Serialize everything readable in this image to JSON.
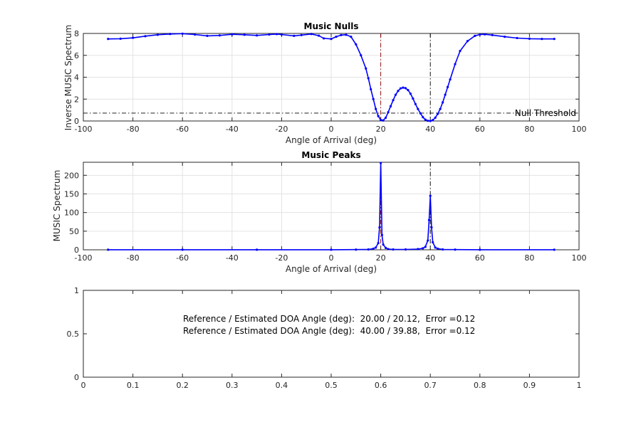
{
  "chart_data": [
    {
      "type": "line",
      "title": "Music Nulls",
      "xlabel": "Angle of Arrival (deg)",
      "ylabel": "Inverse MUSIC Spectrum",
      "xlim": [
        -100,
        100
      ],
      "ylim": [
        0,
        8
      ],
      "xticks": [
        -100,
        -80,
        -60,
        -40,
        -20,
        0,
        20,
        40,
        60,
        80,
        100
      ],
      "yticks": [
        0,
        2,
        4,
        6,
        8
      ],
      "grid": true,
      "series": [
        {
          "color": "#0000ff",
          "marker": "dot",
          "x": [
            -90,
            -85,
            -80,
            -75,
            -70,
            -65,
            -60,
            -55,
            -50,
            -45,
            -40,
            -35,
            -30,
            -25,
            -22,
            -20,
            -15,
            -12,
            -8,
            -5,
            -3,
            0,
            2,
            4,
            6,
            8,
            10,
            12,
            14,
            15,
            16,
            17,
            18,
            19,
            20,
            21,
            22,
            23,
            24,
            25,
            26,
            27,
            28,
            29,
            30,
            31,
            32,
            33,
            34,
            35,
            36,
            37,
            38,
            39,
            40,
            41,
            42,
            43,
            44,
            45,
            46,
            47,
            48,
            50,
            52,
            55,
            58,
            60,
            62,
            65,
            70,
            75,
            80,
            85,
            90
          ],
          "y": [
            7.5,
            7.52,
            7.6,
            7.75,
            7.88,
            7.95,
            7.98,
            7.9,
            7.78,
            7.82,
            7.92,
            7.88,
            7.82,
            7.9,
            7.94,
            7.9,
            7.78,
            7.85,
            7.95,
            7.8,
            7.55,
            7.5,
            7.7,
            7.85,
            7.88,
            7.7,
            7.0,
            6.0,
            4.8,
            3.9,
            2.9,
            2.0,
            1.1,
            0.45,
            0.1,
            0.05,
            0.3,
            0.8,
            1.35,
            1.9,
            2.4,
            2.75,
            2.98,
            3.05,
            3.0,
            2.82,
            2.5,
            2.05,
            1.55,
            1.1,
            0.7,
            0.35,
            0.12,
            0.02,
            0.0,
            0.08,
            0.3,
            0.65,
            1.1,
            1.7,
            2.4,
            3.1,
            3.8,
            5.2,
            6.4,
            7.3,
            7.78,
            7.9,
            7.92,
            7.85,
            7.7,
            7.58,
            7.52,
            7.5,
            7.5
          ]
        }
      ],
      "threshold": {
        "y": 0.72,
        "label": "Null Threshold",
        "color": "#000000",
        "style": "dash-dot"
      },
      "vlines": [
        {
          "x": 20,
          "color": "#8b0000",
          "style": "dash-dot"
        },
        {
          "x": 40,
          "color": "#000000",
          "style": "dash-dot"
        }
      ]
    },
    {
      "type": "line",
      "title": "Music Peaks",
      "xlabel": "Angle of Arrival (deg)",
      "ylabel": "MUSIC Spectrum",
      "xlim": [
        -100,
        100
      ],
      "ylim": [
        0,
        235
      ],
      "xticks": [
        -100,
        -80,
        -60,
        -40,
        -20,
        0,
        20,
        40,
        60,
        80,
        100
      ],
      "yticks": [
        0,
        50,
        100,
        150,
        200
      ],
      "grid": true,
      "series": [
        {
          "color": "#0000ff",
          "marker": "dot",
          "x": [
            -90,
            -60,
            -30,
            0,
            10,
            15,
            17,
            18,
            19,
            19.5,
            20,
            20.5,
            21,
            22,
            23,
            25,
            30,
            35,
            37,
            38,
            39,
            39.5,
            40,
            40.5,
            41,
            42,
            43,
            45,
            50,
            60,
            90
          ],
          "y": [
            0.2,
            0.2,
            0.2,
            0.2,
            0.5,
            1,
            3,
            6,
            18,
            60,
            233,
            40,
            14,
            5,
            2,
            1,
            1,
            2,
            4,
            8,
            25,
            80,
            145,
            60,
            20,
            6,
            3,
            1,
            0.5,
            0.2,
            0.2
          ]
        }
      ],
      "vlines": [
        {
          "x": 20,
          "color": "#8b0000",
          "style": "dash-dot"
        },
        {
          "x": 40,
          "color": "#000000",
          "style": "dash-dot"
        }
      ]
    },
    {
      "type": "table",
      "xlim": [
        0,
        1
      ],
      "ylim": [
        0,
        1
      ],
      "xticks": [
        0,
        0.1,
        0.2,
        0.3,
        0.4,
        0.5,
        0.6,
        0.7,
        0.8,
        0.9,
        1
      ],
      "xticklabels": [
        "0",
        "0.1",
        "0.2",
        "0.3",
        "0.4",
        "0.5",
        "0.6",
        "0.7",
        "0.8",
        "0.9",
        "1"
      ],
      "yticks": [
        0,
        0.5,
        1
      ],
      "yticklabels": [
        "0",
        "0.5",
        "1"
      ],
      "grid": false,
      "annotations": [
        "Reference / Estimated DOA Angle (deg):  20.00 / 20.12,  Error =0.12",
        "Reference / Estimated DOA Angle (deg):  40.00 / 39.88,  Error =0.12"
      ]
    }
  ]
}
